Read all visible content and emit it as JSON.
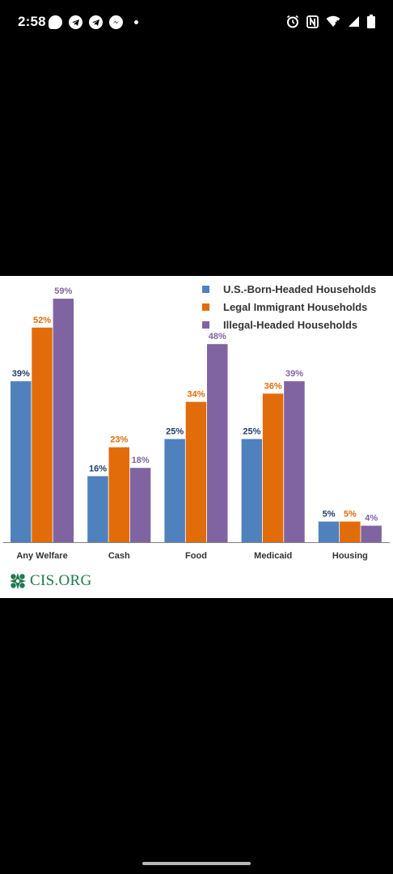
{
  "status_bar": {
    "time": "2:58",
    "left_icons": [
      "chat-bubble-icon",
      "telegram-icon",
      "telegram-icon",
      "messenger-icon",
      "notification-dot-icon"
    ],
    "right_icons": [
      "alarm-icon",
      "nfc-icon",
      "wifi-icon",
      "cellular-signal-icon",
      "battery-icon"
    ]
  },
  "chart_data": {
    "type": "bar",
    "categories": [
      "Any Welfare",
      "Cash",
      "Food",
      "Medicaid",
      "Housing"
    ],
    "series": [
      {
        "name": "U.S.-Born-Headed Households",
        "color": "#4f81bd",
        "values": [
          39,
          16,
          25,
          25,
          5
        ],
        "labels": [
          "39%",
          "16%",
          "25%",
          "25%",
          "5%"
        ]
      },
      {
        "name": "Legal Immigrant Households",
        "color": "#e36c0a",
        "values": [
          52,
          23,
          34,
          36,
          5
        ],
        "labels": [
          "52%",
          "23%",
          "34%",
          "36%",
          "5%"
        ]
      },
      {
        "name": "Illegal-Headed Households",
        "color": "#8064a2",
        "values": [
          59,
          18,
          48,
          39,
          4
        ],
        "labels": [
          "59%",
          "18%",
          "48%",
          "39%",
          "4%"
        ]
      }
    ],
    "ylim": [
      0,
      60
    ],
    "grid": false,
    "legend_position": "top-right"
  },
  "logo": {
    "text": "CIS.ORG",
    "color": "#1f7a4d",
    "icon": "cis-logo-icon"
  }
}
